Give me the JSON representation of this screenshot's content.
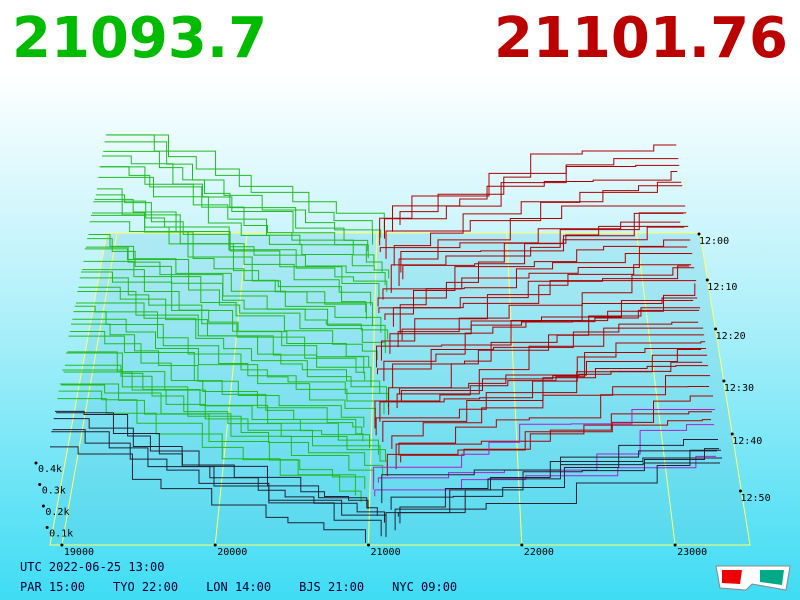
{
  "header": {
    "bid": "21093.7",
    "ask": "21101.76"
  },
  "x_axis": {
    "ticks": [
      "19000",
      "20000",
      "21000",
      "22000",
      "23000"
    ]
  },
  "depth_axis": {
    "ticks": [
      "0.4k",
      "0.3k",
      "0.2k",
      "0.1k"
    ]
  },
  "time_axis": {
    "ticks": [
      "12:00",
      "12:10",
      "12:20",
      "12:30",
      "12:40",
      "12:50"
    ]
  },
  "footer": {
    "utc": "UTC 2022-06-25 13:00",
    "zones": [
      "PAR 15:00",
      "TYO 22:00",
      "LON 14:00",
      "BJS 21:00",
      "NYC 09:00"
    ]
  }
}
